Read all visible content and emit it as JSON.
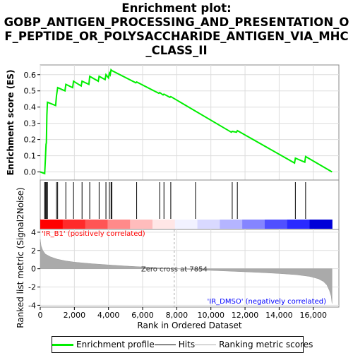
{
  "title_lines": [
    "Enrichment plot:",
    "GOBP_ANTIGEN_PROCESSING_AND_PRESENTATION_O",
    "F_PEPTIDE_OR_POLYSACCHARIDE_ANTIGEN_VIA_MHC",
    "_CLASS_II"
  ],
  "colors": {
    "enrichment": "#00ee00",
    "hits": "#000000",
    "metric": "#aaaaaa",
    "pos_label": "#ff0000",
    "neg_label": "#0000ff"
  },
  "chart_data": [
    {
      "type": "line",
      "name": "enrichment-profile",
      "ylabel": "Enrichment score (ES)",
      "ylim": [
        -0.05,
        0.66
      ],
      "yticks": [
        0.0,
        0.1,
        0.2,
        0.3,
        0.4,
        0.5,
        0.6
      ],
      "ytick_labels": [
        "0.0",
        "0.1",
        "0.2",
        "0.3",
        "0.4",
        "0.5",
        "0.6"
      ],
      "xlim": [
        0,
        17500
      ],
      "grid": true,
      "x": [
        0,
        260,
        300,
        340,
        360,
        390,
        420,
        900,
        950,
        1020,
        1450,
        1500,
        1900,
        1950,
        2400,
        2450,
        2850,
        2900,
        3400,
        3450,
        3800,
        3850,
        4000,
        4050,
        4100,
        4150,
        4200,
        5600,
        5650,
        6950,
        7000,
        7200,
        7250,
        7600,
        7650,
        11200,
        11250,
        11500,
        11550,
        14900,
        14950,
        15500,
        15550,
        17100
      ],
      "y": [
        0.0,
        -0.01,
        0.08,
        0.17,
        0.18,
        0.35,
        0.43,
        0.41,
        0.47,
        0.52,
        0.5,
        0.54,
        0.52,
        0.56,
        0.53,
        0.56,
        0.54,
        0.59,
        0.56,
        0.59,
        0.57,
        0.6,
        0.58,
        0.61,
        0.6,
        0.63,
        0.625,
        0.55,
        0.555,
        0.485,
        0.49,
        0.475,
        0.48,
        0.46,
        0.465,
        0.245,
        0.25,
        0.245,
        0.255,
        0.055,
        0.085,
        0.06,
        0.095,
        0.0
      ]
    },
    {
      "type": "hits",
      "name": "hits",
      "positions": [
        260,
        300,
        340,
        390,
        420,
        950,
        1020,
        1500,
        1950,
        2450,
        2900,
        3450,
        3850,
        4050,
        4150,
        4200,
        5650,
        7000,
        7250,
        7650,
        9100,
        11250,
        11550,
        14950,
        15550
      ]
    },
    {
      "type": "area",
      "name": "ranking-metric",
      "xlabel": "Rank in Ordered Dataset",
      "ylabel": "Ranked list metric (Signal2Noise)",
      "ylim": [
        -4.2,
        4.3
      ],
      "yticks": [
        -4,
        -2,
        0,
        2,
        4
      ],
      "ytick_labels": [
        "-4",
        "-2",
        "0",
        "2",
        "4"
      ],
      "xlim": [
        0,
        17500
      ],
      "xticks": [
        0,
        2000,
        4000,
        6000,
        8000,
        10000,
        12000,
        14000,
        16000
      ],
      "xtick_labels": [
        "0",
        "2,000",
        "4,000",
        "6,000",
        "8,000",
        "10,000",
        "12,000",
        "14,000",
        "16,000"
      ],
      "grid": true,
      "x": [
        0,
        50,
        150,
        300,
        600,
        1000,
        1500,
        2000,
        3000,
        4000,
        5000,
        6000,
        7000,
        7854,
        9000,
        10000,
        11000,
        12000,
        13000,
        14000,
        15000,
        15800,
        16300,
        16600,
        16800,
        16950,
        17050,
        17100
      ],
      "y": [
        3.2,
        2.5,
        2.0,
        1.6,
        1.3,
        1.05,
        0.85,
        0.72,
        0.55,
        0.42,
        0.3,
        0.2,
        0.1,
        0.0,
        -0.1,
        -0.18,
        -0.26,
        -0.34,
        -0.42,
        -0.52,
        -0.65,
        -0.85,
        -1.1,
        -1.4,
        -1.8,
        -2.4,
        -3.0,
        -3.8
      ],
      "zero_cross_label": "Zero cross at 7854",
      "zero_cross_rank": 7854,
      "pos_label": "'IR_B1' (positively correlated)",
      "neg_label": "'IR_DMSO' (negatively correlated)"
    }
  ],
  "heatmap_colors": [
    "#ff0000",
    "#ff2a2a",
    "#ff5555",
    "#ff8a8a",
    "#ffbcbc",
    "#ffe6e6",
    "#f2f2ff",
    "#d9d9ff",
    "#b5b5ff",
    "#8585ff",
    "#5050ff",
    "#2a2aff",
    "#0000d8"
  ],
  "legend": {
    "items": [
      {
        "label": "Enrichment profile",
        "color": "#00ee00",
        "style": "solid"
      },
      {
        "label": "Hits",
        "color": "#000000",
        "style": "solid"
      },
      {
        "label": "Ranking metric scores",
        "color": "#aaaaaa",
        "style": "solid"
      }
    ]
  }
}
